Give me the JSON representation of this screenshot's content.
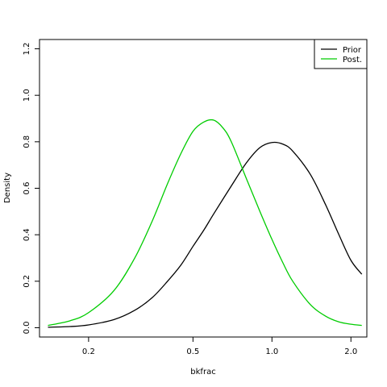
{
  "chart_data": {
    "type": "line",
    "title": "",
    "xlabel": "bkfrac",
    "ylabel": "Density",
    "x_scale": "log",
    "xlim": [
      0.13,
      2.3
    ],
    "ylim": [
      -0.04,
      1.24
    ],
    "x_ticks": [
      0.2,
      0.5,
      1.0,
      2.0
    ],
    "x_tick_labels": [
      "0.2",
      "0.5",
      "1.0",
      "2.0"
    ],
    "y_ticks": [
      0.0,
      0.2,
      0.4,
      0.6,
      0.8,
      1.0,
      1.2
    ],
    "y_tick_labels": [
      "0.0",
      "0.2",
      "0.4",
      "0.6",
      "0.8",
      "1.0",
      "1.2"
    ],
    "grid": false,
    "legend": {
      "position": "top-right",
      "entries": [
        "Prior",
        "Post."
      ]
    },
    "series": [
      {
        "name": "Prior",
        "color": "#000000",
        "x": [
          0.14,
          0.17,
          0.2,
          0.25,
          0.3,
          0.35,
          0.4,
          0.45,
          0.5,
          0.55,
          0.6,
          0.7,
          0.8,
          0.9,
          1.0,
          1.1,
          1.2,
          1.4,
          1.6,
          1.8,
          2.0,
          2.2
        ],
        "y": [
          0.002,
          0.005,
          0.012,
          0.035,
          0.075,
          0.13,
          0.2,
          0.27,
          0.35,
          0.42,
          0.49,
          0.61,
          0.71,
          0.775,
          0.797,
          0.79,
          0.76,
          0.66,
          0.53,
          0.4,
          0.29,
          0.23
        ]
      },
      {
        "name": "Post.",
        "color": "#00cc00",
        "x": [
          0.14,
          0.17,
          0.2,
          0.25,
          0.3,
          0.35,
          0.4,
          0.45,
          0.5,
          0.55,
          0.6,
          0.65,
          0.7,
          0.8,
          0.9,
          1.0,
          1.1,
          1.2,
          1.4,
          1.6,
          1.8,
          2.0,
          2.2
        ],
        "y": [
          0.01,
          0.03,
          0.065,
          0.16,
          0.3,
          0.46,
          0.62,
          0.75,
          0.845,
          0.885,
          0.893,
          0.86,
          0.8,
          0.64,
          0.5,
          0.38,
          0.28,
          0.2,
          0.1,
          0.05,
          0.025,
          0.015,
          0.01
        ]
      }
    ]
  },
  "colors": {
    "prior": "#000000",
    "posterior": "#00cc00",
    "axis": "#000000"
  }
}
